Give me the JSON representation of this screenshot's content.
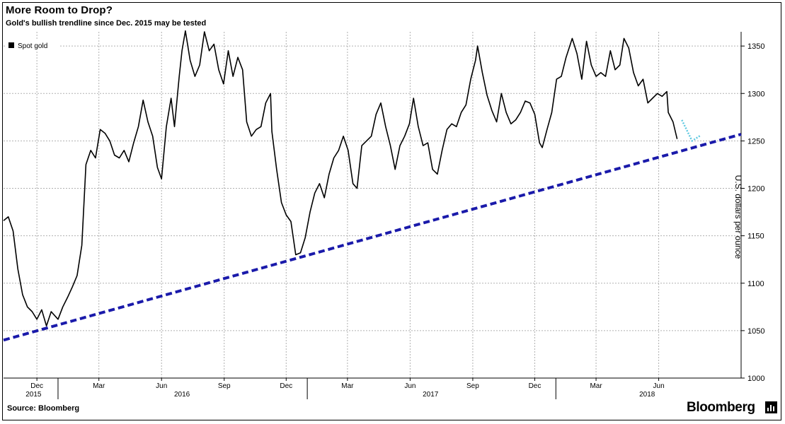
{
  "title": "More Room to Drop?",
  "subtitle": "Gold's bullish trendline since Dec. 2015 may be tested",
  "source": "Source: Bloomberg",
  "brand": "Bloomberg",
  "colors": {
    "price_line": "#000000",
    "trendline": "#1a1aaa",
    "projection": "#5ec8e0",
    "grid": "#b0b0b0"
  },
  "chart_data": {
    "type": "line",
    "title": "More Room to Drop?",
    "subtitle": "Gold's bullish trendline since Dec. 2015 may be tested",
    "ylabel": "U.S. dollars per ounce",
    "ylim": [
      1000,
      1365
    ],
    "yticks": [
      1000,
      1050,
      1100,
      1150,
      1200,
      1250,
      1300,
      1350
    ],
    "xlim": [
      "2015-10-13",
      "2018-09-30"
    ],
    "x_month_ticks": [
      {
        "date": "2015-12-01",
        "label": "Dec"
      },
      {
        "date": "2016-03-01",
        "label": "Mar"
      },
      {
        "date": "2016-06-01",
        "label": "Jun"
      },
      {
        "date": "2016-09-01",
        "label": "Sep"
      },
      {
        "date": "2016-12-01",
        "label": "Dec"
      },
      {
        "date": "2017-03-01",
        "label": "Mar"
      },
      {
        "date": "2017-06-01",
        "label": "Jun"
      },
      {
        "date": "2017-09-01",
        "label": "Sep"
      },
      {
        "date": "2017-12-01",
        "label": "Dec"
      },
      {
        "date": "2018-03-01",
        "label": "Mar"
      },
      {
        "date": "2018-06-01",
        "label": "Jun"
      }
    ],
    "x_year_labels": [
      {
        "date": "2015-11-26",
        "label": "2015"
      },
      {
        "date": "2016-07-01",
        "label": "2016"
      },
      {
        "date": "2017-07-01",
        "label": "2017"
      },
      {
        "date": "2018-05-15",
        "label": "2018"
      }
    ],
    "year_dividers": [
      "2016-01-01",
      "2017-01-01",
      "2018-01-01"
    ],
    "grid": true,
    "legend": {
      "placement": "top-left",
      "entries": [
        "Spot gold"
      ]
    },
    "series": [
      {
        "name": "Spot gold",
        "style": "solid",
        "points": [
          [
            "2015-10-13",
            1166
          ],
          [
            "2015-10-20",
            1170
          ],
          [
            "2015-10-27",
            1155
          ],
          [
            "2015-11-03",
            1115
          ],
          [
            "2015-11-10",
            1088
          ],
          [
            "2015-11-17",
            1075
          ],
          [
            "2015-11-24",
            1070
          ],
          [
            "2015-12-01",
            1062
          ],
          [
            "2015-12-08",
            1072
          ],
          [
            "2015-12-15",
            1055
          ],
          [
            "2015-12-22",
            1070
          ],
          [
            "2016-01-01",
            1062
          ],
          [
            "2016-01-08",
            1075
          ],
          [
            "2016-01-15",
            1085
          ],
          [
            "2016-01-22",
            1096
          ],
          [
            "2016-01-29",
            1108
          ],
          [
            "2016-02-05",
            1140
          ],
          [
            "2016-02-11",
            1225
          ],
          [
            "2016-02-18",
            1240
          ],
          [
            "2016-02-25",
            1232
          ],
          [
            "2016-03-03",
            1262
          ],
          [
            "2016-03-10",
            1258
          ],
          [
            "2016-03-17",
            1250
          ],
          [
            "2016-03-24",
            1235
          ],
          [
            "2016-03-31",
            1232
          ],
          [
            "2016-04-07",
            1240
          ],
          [
            "2016-04-14",
            1228
          ],
          [
            "2016-04-21",
            1248
          ],
          [
            "2016-04-28",
            1265
          ],
          [
            "2016-05-05",
            1293
          ],
          [
            "2016-05-12",
            1270
          ],
          [
            "2016-05-19",
            1255
          ],
          [
            "2016-05-26",
            1222
          ],
          [
            "2016-06-01",
            1210
          ],
          [
            "2016-06-08",
            1265
          ],
          [
            "2016-06-15",
            1295
          ],
          [
            "2016-06-20",
            1265
          ],
          [
            "2016-06-27",
            1318
          ],
          [
            "2016-07-01",
            1345
          ],
          [
            "2016-07-06",
            1366
          ],
          [
            "2016-07-13",
            1335
          ],
          [
            "2016-07-20",
            1318
          ],
          [
            "2016-07-27",
            1330
          ],
          [
            "2016-08-03",
            1365
          ],
          [
            "2016-08-10",
            1345
          ],
          [
            "2016-08-17",
            1352
          ],
          [
            "2016-08-24",
            1325
          ],
          [
            "2016-08-31",
            1310
          ],
          [
            "2016-09-07",
            1345
          ],
          [
            "2016-09-14",
            1318
          ],
          [
            "2016-09-21",
            1338
          ],
          [
            "2016-09-28",
            1325
          ],
          [
            "2016-10-04",
            1270
          ],
          [
            "2016-10-11",
            1255
          ],
          [
            "2016-10-18",
            1262
          ],
          [
            "2016-10-25",
            1265
          ],
          [
            "2016-11-01",
            1290
          ],
          [
            "2016-11-08",
            1300
          ],
          [
            "2016-11-10",
            1260
          ],
          [
            "2016-11-17",
            1220
          ],
          [
            "2016-11-24",
            1185
          ],
          [
            "2016-12-01",
            1172
          ],
          [
            "2016-12-08",
            1165
          ],
          [
            "2016-12-15",
            1130
          ],
          [
            "2016-12-22",
            1132
          ],
          [
            "2016-12-29",
            1148
          ],
          [
            "2017-01-05",
            1175
          ],
          [
            "2017-01-12",
            1195
          ],
          [
            "2017-01-19",
            1205
          ],
          [
            "2017-01-26",
            1190
          ],
          [
            "2017-02-02",
            1215
          ],
          [
            "2017-02-09",
            1232
          ],
          [
            "2017-02-16",
            1240
          ],
          [
            "2017-02-23",
            1255
          ],
          [
            "2017-03-02",
            1240
          ],
          [
            "2017-03-09",
            1205
          ],
          [
            "2017-03-15",
            1200
          ],
          [
            "2017-03-22",
            1245
          ],
          [
            "2017-03-29",
            1250
          ],
          [
            "2017-04-05",
            1255
          ],
          [
            "2017-04-12",
            1278
          ],
          [
            "2017-04-19",
            1290
          ],
          [
            "2017-04-26",
            1265
          ],
          [
            "2017-05-03",
            1245
          ],
          [
            "2017-05-10",
            1220
          ],
          [
            "2017-05-17",
            1245
          ],
          [
            "2017-05-24",
            1255
          ],
          [
            "2017-05-31",
            1268
          ],
          [
            "2017-06-06",
            1295
          ],
          [
            "2017-06-13",
            1265
          ],
          [
            "2017-06-20",
            1245
          ],
          [
            "2017-06-27",
            1248
          ],
          [
            "2017-07-04",
            1220
          ],
          [
            "2017-07-11",
            1215
          ],
          [
            "2017-07-18",
            1240
          ],
          [
            "2017-07-25",
            1262
          ],
          [
            "2017-08-01",
            1268
          ],
          [
            "2017-08-08",
            1265
          ],
          [
            "2017-08-15",
            1280
          ],
          [
            "2017-08-22",
            1288
          ],
          [
            "2017-08-29",
            1315
          ],
          [
            "2017-09-05",
            1335
          ],
          [
            "2017-09-08",
            1350
          ],
          [
            "2017-09-15",
            1322
          ],
          [
            "2017-09-22",
            1298
          ],
          [
            "2017-09-29",
            1282
          ],
          [
            "2017-10-06",
            1270
          ],
          [
            "2017-10-13",
            1300
          ],
          [
            "2017-10-20",
            1280
          ],
          [
            "2017-10-27",
            1268
          ],
          [
            "2017-11-03",
            1272
          ],
          [
            "2017-11-10",
            1280
          ],
          [
            "2017-11-17",
            1292
          ],
          [
            "2017-11-24",
            1290
          ],
          [
            "2017-12-01",
            1278
          ],
          [
            "2017-12-08",
            1248
          ],
          [
            "2017-12-12",
            1243
          ],
          [
            "2017-12-19",
            1262
          ],
          [
            "2017-12-26",
            1280
          ],
          [
            "2018-01-02",
            1315
          ],
          [
            "2018-01-09",
            1318
          ],
          [
            "2018-01-16",
            1338
          ],
          [
            "2018-01-25",
            1358
          ],
          [
            "2018-02-01",
            1342
          ],
          [
            "2018-02-08",
            1315
          ],
          [
            "2018-02-15",
            1355
          ],
          [
            "2018-02-22",
            1330
          ],
          [
            "2018-03-01",
            1318
          ],
          [
            "2018-03-08",
            1322
          ],
          [
            "2018-03-15",
            1318
          ],
          [
            "2018-03-22",
            1345
          ],
          [
            "2018-03-29",
            1325
          ],
          [
            "2018-04-05",
            1330
          ],
          [
            "2018-04-11",
            1358
          ],
          [
            "2018-04-18",
            1348
          ],
          [
            "2018-04-25",
            1322
          ],
          [
            "2018-05-02",
            1308
          ],
          [
            "2018-05-09",
            1315
          ],
          [
            "2018-05-16",
            1290
          ],
          [
            "2018-05-23",
            1295
          ],
          [
            "2018-05-30",
            1300
          ],
          [
            "2018-06-06",
            1297
          ],
          [
            "2018-06-13",
            1302
          ],
          [
            "2018-06-15",
            1280
          ],
          [
            "2018-06-22",
            1270
          ],
          [
            "2018-06-28",
            1252
          ]
        ]
      },
      {
        "name": "Trendline",
        "style": "dashed",
        "points": [
          [
            "2015-10-13",
            1040
          ],
          [
            "2018-09-30",
            1257
          ]
        ]
      },
      {
        "name": "Projection",
        "style": "dotted",
        "points": [
          [
            "2018-07-05",
            1272
          ],
          [
            "2018-07-20",
            1250
          ],
          [
            "2018-08-02",
            1256
          ]
        ]
      }
    ]
  }
}
